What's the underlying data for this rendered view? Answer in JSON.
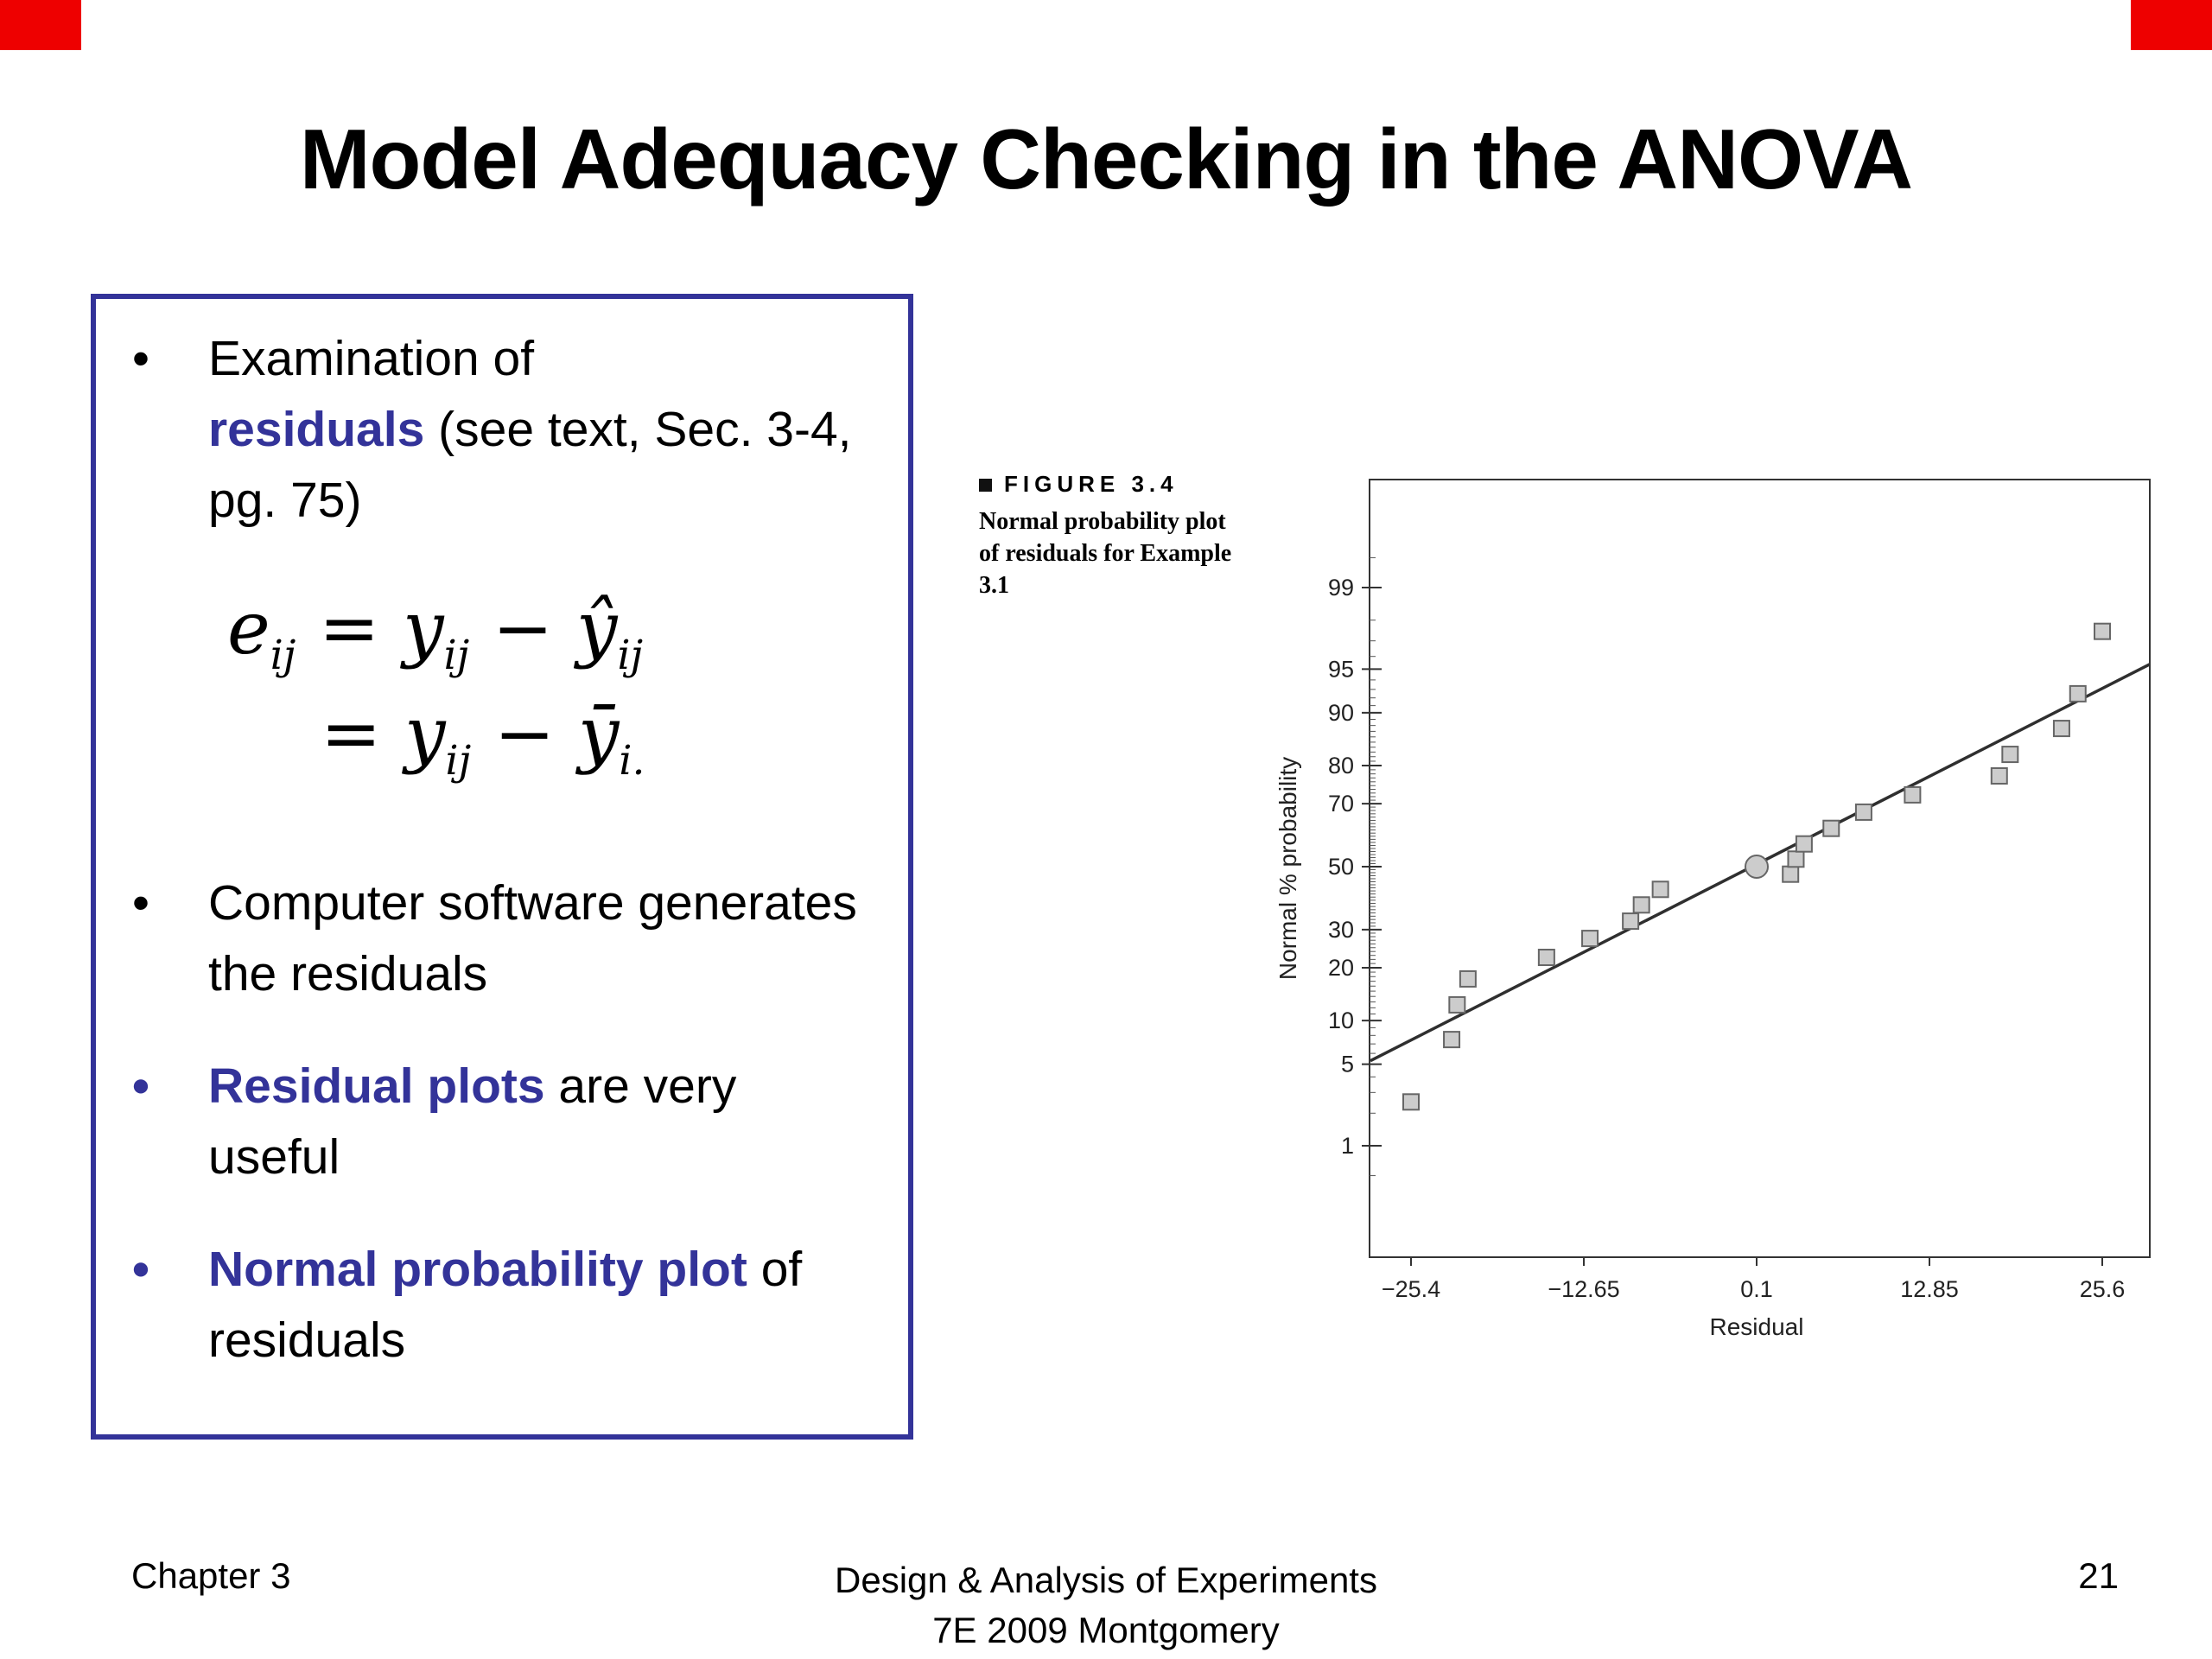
{
  "slide": {
    "title": "Model Adequacy Checking in the ANOVA",
    "bullet_char": "•",
    "footer": {
      "chapter": "Chapter 3",
      "center_line1": "Design & Analysis of Experiments",
      "center_line2": "7E 2009 Montgomery",
      "page_number": "21"
    }
  },
  "panel": {
    "bullet1": {
      "pre": "Examination of",
      "highlight": "residuals",
      "post": " (see text, Sec. 3-4, pg. 75)"
    },
    "formula1": {
      "p1": "e",
      "s1": "ij",
      "p2": " = y",
      "s2": "ij",
      "p3": " − ŷ",
      "s3": "ij"
    },
    "formula2": {
      "p1": "= y",
      "s1": "ij",
      "p2": " − ȳ",
      "s2": "i."
    },
    "bullet2": "Computer software generates the residuals",
    "bullet3": {
      "highlight": "Residual plots",
      "post": " are very useful"
    },
    "bullet4": {
      "highlight": "Normal probability plot",
      "post": " of residuals"
    }
  },
  "figure": {
    "label": "FIGURE 3.4",
    "caption": "Normal probability plot of residuals for Example 3.1"
  },
  "chart_data": {
    "type": "scatter",
    "title": "Normal probability plot of residuals for Example 3.1",
    "xlabel": "Residual",
    "ylabel": "Normal % probability",
    "x_ticks": [
      -25.4,
      -12.65,
      0.1,
      12.85,
      25.6
    ],
    "y_ticks": [
      1,
      5,
      10,
      20,
      30,
      50,
      70,
      80,
      90,
      95,
      99
    ],
    "y_scale": "normal-probability",
    "points": [
      {
        "x": -25.4,
        "p": 2.5
      },
      {
        "x": -22.4,
        "p": 7.5
      },
      {
        "x": -22.0,
        "p": 12.5
      },
      {
        "x": -21.2,
        "p": 17.5
      },
      {
        "x": -15.4,
        "p": 22.5
      },
      {
        "x": -12.2,
        "p": 27.5
      },
      {
        "x": -9.2,
        "p": 32.5
      },
      {
        "x": -8.4,
        "p": 37.5
      },
      {
        "x": -7.0,
        "p": 42.5
      },
      {
        "x": 2.6,
        "p": 47.5
      },
      {
        "x": 3.0,
        "p": 52.5
      },
      {
        "x": 3.6,
        "p": 57.5
      },
      {
        "x": 5.6,
        "p": 62.5
      },
      {
        "x": 8.0,
        "p": 67.5
      },
      {
        "x": 11.6,
        "p": 72.5
      },
      {
        "x": 18.0,
        "p": 77.5
      },
      {
        "x": 18.8,
        "p": 82.5
      },
      {
        "x": 22.6,
        "p": 87.5
      },
      {
        "x": 23.8,
        "p": 92.5
      },
      {
        "x": 25.6,
        "p": 97.5
      }
    ],
    "highlight_point": {
      "x": 0.1,
      "p": 50
    },
    "fit_line": {
      "x1": -28.4,
      "p1": 5.3,
      "x2": 29.1,
      "p2": 95.4
    }
  },
  "colors": {
    "accent_blue": "#333399",
    "corner_red": "#EE0000",
    "chart_marker_fill": "#CCCCCC",
    "chart_marker_stroke": "#666666",
    "chart_line": "#2F2F2F",
    "chart_axis": "#333333"
  }
}
